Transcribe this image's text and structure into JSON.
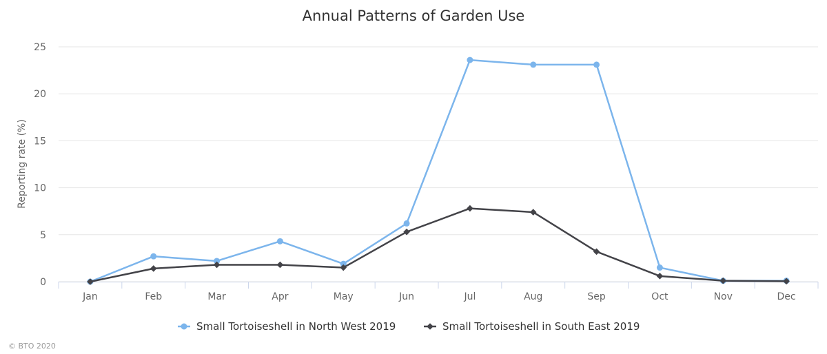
{
  "chart_data": {
    "type": "line",
    "title": "Annual Patterns of Garden Use",
    "xlabel": "",
    "ylabel": "Reporting rate (%)",
    "ylim": [
      0,
      25
    ],
    "yticks": [
      "0",
      "5",
      "10",
      "15",
      "20",
      "25"
    ],
    "categories": [
      "Jan",
      "Feb",
      "Mar",
      "Apr",
      "May",
      "Jun",
      "Jul",
      "Aug",
      "Sep",
      "Oct",
      "Nov",
      "Dec"
    ],
    "series": [
      {
        "name": "Small Tortoiseshell in North West 2019",
        "color": "#7cb5ec",
        "marker": "circle",
        "values": [
          0,
          2.7,
          2.2,
          4.3,
          1.9,
          6.2,
          23.6,
          23.1,
          23.1,
          1.5,
          0.1,
          0.1
        ]
      },
      {
        "name": "Small Tortoiseshell in South East 2019",
        "color": "#434348",
        "marker": "diamond",
        "values": [
          0,
          1.4,
          1.8,
          1.8,
          1.5,
          5.3,
          7.8,
          7.4,
          3.2,
          0.6,
          0.1,
          0.05
        ]
      }
    ],
    "grid": true,
    "legend_position": "bottom-center"
  },
  "credit": "© BTO 2020"
}
